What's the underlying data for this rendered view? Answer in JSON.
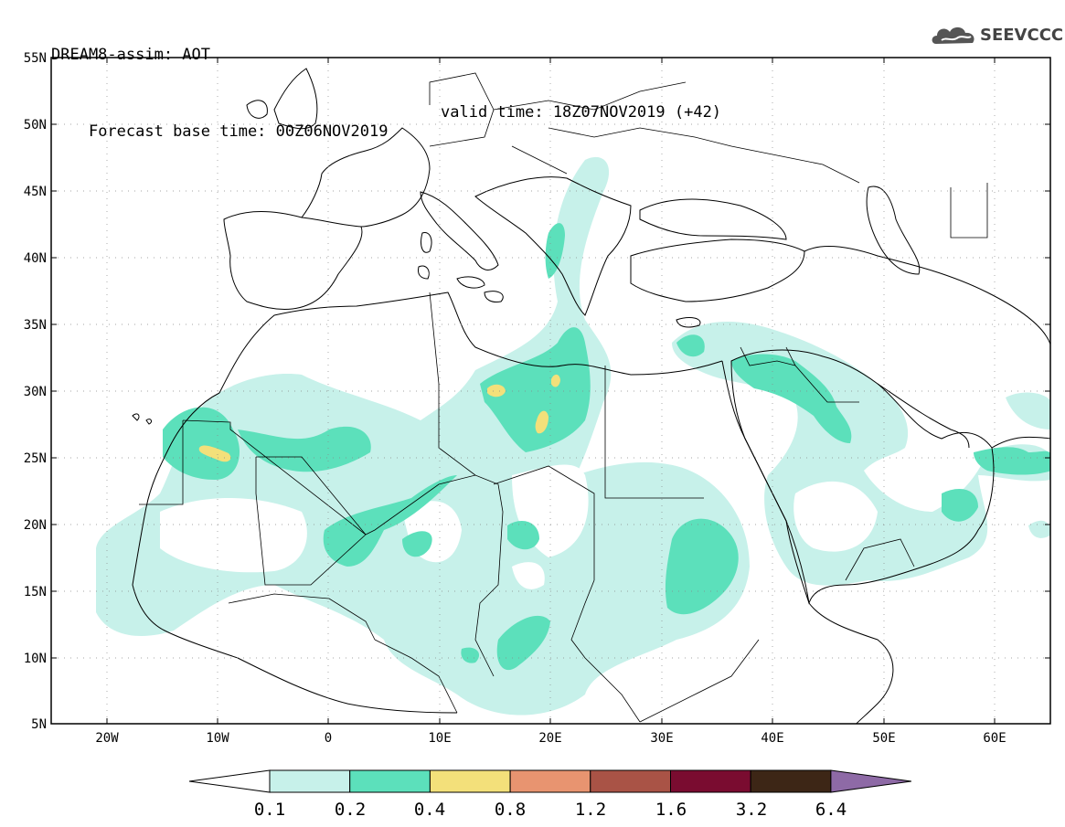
{
  "header": {
    "line1": "DREAM8-assim: AOT",
    "line2": "Forecast base time: 00Z06NOV2019",
    "valid": "valid time: 18Z07NOV2019 (+42)"
  },
  "logo": {
    "text": "SEEVCCC",
    "icon": "cloud-icon"
  },
  "map": {
    "lat_labels": [
      "55N",
      "50N",
      "45N",
      "40N",
      "35N",
      "30N",
      "25N",
      "20N",
      "15N",
      "10N",
      "5N"
    ],
    "lon_labels": [
      "20W",
      "10W",
      "0",
      "10E",
      "20E",
      "30E",
      "40E",
      "50E",
      "60E"
    ],
    "lon_range": [
      -25,
      65
    ],
    "lat_range": [
      5,
      55
    ]
  },
  "legend": {
    "labels": [
      "0.1",
      "0.2",
      "0.4",
      "0.8",
      "1.2",
      "1.6",
      "3.2",
      "6.4"
    ],
    "colors": [
      "#ffffff",
      "#c7f1ea",
      "#5ce0bb",
      "#f3e07a",
      "#e89470",
      "#a95346",
      "#7a0c30",
      "#3d2616",
      "#8e6aa6"
    ]
  }
}
